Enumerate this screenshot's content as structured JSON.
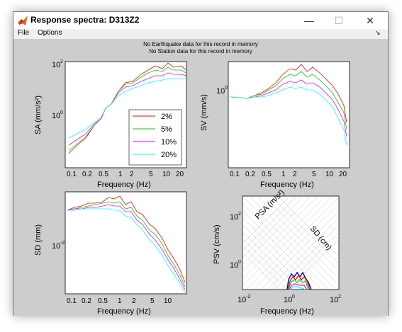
{
  "window": {
    "title": "Response spectra: D313Z2",
    "minimize_icon": "minimize-icon",
    "maximize_icon": "maximize-icon",
    "close_icon": "close-icon",
    "minimize_glyph": "—",
    "maximize_glyph": "☐",
    "close_glyph": "✕"
  },
  "menu": {
    "file": "File",
    "options": "Options",
    "dock_glyph": "↘"
  },
  "messages": {
    "line1": "No Earthquake data for this record in memory",
    "line2": "No Station data for this record in memory"
  },
  "plots": {
    "sa": {
      "ylabel": "SA (mm/s²)",
      "xlabel": "Frequency (Hz)",
      "yticks": [
        "10",
        "10"
      ],
      "yexp": [
        "2",
        "0"
      ],
      "xticks": [
        "0.1",
        "0.2",
        "0.5",
        "1",
        "2",
        "5",
        "10",
        "20"
      ]
    },
    "sv": {
      "ylabel": "SV (mm/s)",
      "xlabel": "Frequency (Hz)",
      "yticks": [
        "10"
      ],
      "yexp": [
        "0"
      ],
      "xticks": [
        "0.1",
        "0.2",
        "0.5",
        "1",
        "2",
        "5",
        "10",
        "20"
      ]
    },
    "sd": {
      "ylabel": "SD (mm)",
      "xlabel": "Frequency (Hz)",
      "yticks": [
        "10"
      ],
      "yexp": [
        "-2"
      ],
      "xticks": [
        "0.1",
        "0.2",
        "0.5",
        "1",
        "2",
        "5",
        "10"
      ]
    },
    "psv": {
      "ylabel": "PSV (cm/s)",
      "xlabel": "Frequency (Hz)",
      "yticks": [
        "10",
        "10"
      ],
      "yexp": [
        "2",
        "0"
      ],
      "xticks": [
        "10",
        "10",
        "10"
      ],
      "xexp": [
        "-2",
        "0",
        "2"
      ],
      "psa_label": "PSA (m/s²)",
      "sd_label": "SD (cm)"
    }
  },
  "legend": [
    {
      "label": "2%",
      "color": "#ff0000"
    },
    {
      "label": "5%",
      "color": "#00cc00"
    },
    {
      "label": "10%",
      "color": "#ff00ff"
    },
    {
      "label": "20%",
      "color": "#00ffff"
    }
  ],
  "colors": {
    "canvas": "#cdcdcd",
    "axes_bg": "#ffffff"
  }
}
